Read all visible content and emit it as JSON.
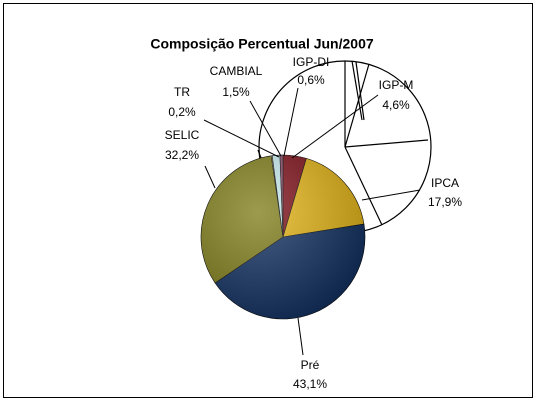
{
  "chart_data": {
    "type": "pie",
    "title": "Composição Percentual Jun/2007",
    "categories": [
      "IGP-M",
      "IPCA",
      "Pré",
      "SELIC",
      "TR",
      "CAMBIAL",
      "IGP-DI"
    ],
    "values": [
      4.6,
      17.9,
      43.1,
      32.2,
      0.2,
      1.5,
      0.6
    ],
    "value_labels": [
      "4,6%",
      "17,9%",
      "43,1%",
      "32,2%",
      "0,2%",
      "1,5%",
      "0,6%"
    ],
    "colors": [
      "#7a0a12",
      "#e3b20f",
      "#0a2a5c",
      "#7c7a12",
      "#f4f0b0",
      "#c8ecf0",
      "#8a4a6a"
    ]
  }
}
